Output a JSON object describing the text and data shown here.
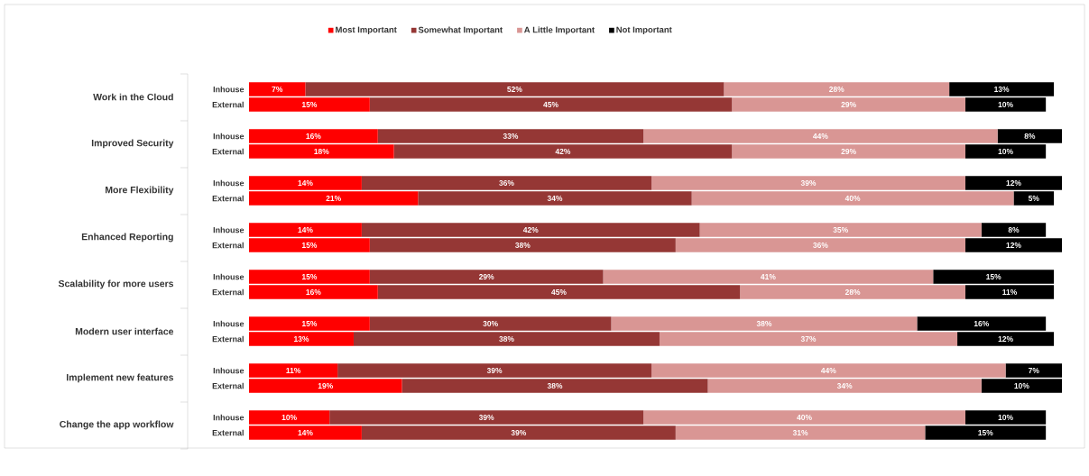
{
  "chart_data": {
    "type": "bar",
    "orientation": "horizontal",
    "stacked": true,
    "legend": "top",
    "tick_labels": "y",
    "categories": [
      "Inhouse",
      "External",
      "Inhouse",
      "External",
      "Inhouse",
      "External",
      "Inhouse",
      "External",
      "Inhouse",
      "External",
      "Inhouse",
      "External",
      "Inhouse",
      "External",
      "Inhouse",
      "External"
    ],
    "annotations": [
      "Work in the Cloud",
      "Improved Security",
      "More Flexibility",
      "Enhanced Reporting",
      "Scalability for more users",
      "Modern user interface",
      "Implement new features",
      "Change the app workflow"
    ],
    "series": [
      {
        "name": "Most Important",
        "color": "#ff0000",
        "values": [
          7,
          15,
          16,
          18,
          14,
          21,
          14,
          15,
          15,
          16,
          15,
          13,
          11,
          19,
          10,
          14
        ],
        "value_labels": [
          "7%",
          "15%",
          "16%",
          "18%",
          "14%",
          "21%",
          "14%",
          "15%",
          "15%",
          "16%",
          "15%",
          "13%",
          "11%",
          "19%",
          "10%",
          "14%"
        ]
      },
      {
        "name": "Somewhat Important",
        "color": "#953735",
        "values": [
          52,
          45,
          33,
          42,
          36,
          34,
          42,
          38,
          29,
          45,
          30,
          38,
          39,
          38,
          39,
          39
        ],
        "value_labels": [
          "52%",
          "45%",
          "33%",
          "42%",
          "36%",
          "34%",
          "42%",
          "38%",
          "29%",
          "45%",
          "30%",
          "38%",
          "39%",
          "38%",
          "39%",
          "39%"
        ]
      },
      {
        "name": "A Little Important",
        "color": "#d99694",
        "values": [
          28,
          29,
          44,
          29,
          39,
          40,
          35,
          36,
          41,
          28,
          38,
          37,
          44,
          34,
          40,
          31
        ],
        "value_labels": [
          "28%",
          "29%",
          "44%",
          "29%",
          "39%",
          "40%",
          "35%",
          "36%",
          "41%",
          "28%",
          "38%",
          "37%",
          "44%",
          "34%",
          "40%",
          "31%"
        ]
      },
      {
        "name": "Not Important",
        "color": "#000000",
        "values": [
          13,
          10,
          8,
          10,
          12,
          5,
          8,
          12,
          15,
          11,
          16,
          12,
          7,
          10,
          10,
          15
        ],
        "value_labels": [
          "13%",
          "10%",
          "8%",
          "10%",
          "12%",
          "5%",
          "8%",
          "12%",
          "15%",
          "11%",
          "16%",
          "12%",
          "7%",
          "10%",
          "10%",
          "15%"
        ]
      }
    ]
  }
}
